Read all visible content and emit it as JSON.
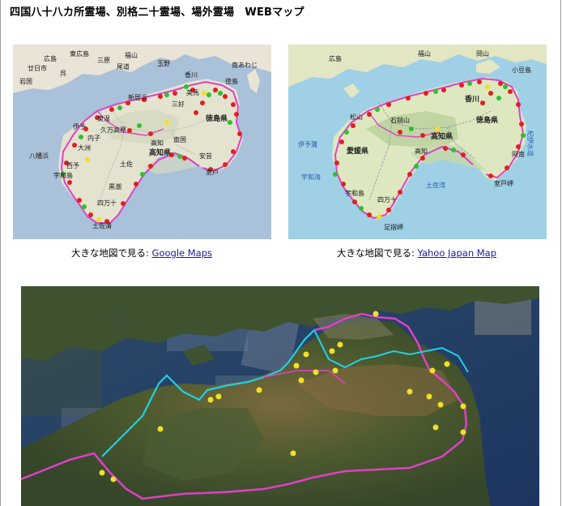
{
  "page": {
    "title": "四国八十八カ所霊場、別格二十霊場、場外霊場　WEBマップ"
  },
  "maps": {
    "google": {
      "caption_prefix": "大きな地図で見る:",
      "link_label": "Google Maps",
      "labels": {
        "hatsukaichi": "廿日市",
        "hiroshima": "広島",
        "higashihiroshima": "東広島",
        "mihara": "三原",
        "fukuyama": "福山",
        "kure": "呉",
        "onomichi": "尾道",
        "tamano": "玉野",
        "iwakuni": "岩国",
        "minami_awaji": "南あわじ",
        "kagawa": "香川",
        "tokushima_city": "徳島",
        "mima": "美馬",
        "miyoshi": "三好",
        "niihama": "新居浜",
        "iyo": "伊予",
        "toon": "東温",
        "kumakogen": "久万高原",
        "uchiko": "内子",
        "ozu": "大洲",
        "yawatahama": "八幡浜",
        "seiyo": "西予",
        "uwajima": "宇和島",
        "kochi_city": "高知",
        "nankoku": "南国",
        "aki": "安芸",
        "tosa": "土佐",
        "muroto": "室戸",
        "shimanto": "四万十",
        "kuroshio": "黒潮",
        "tosashimizu": "土佐清",
        "tokushima_pref": "徳島県",
        "kochi_pref": "高知県"
      }
    },
    "yahoo": {
      "caption_prefix": "大きな地図で見る:",
      "link_label": "Yahoo Japan Map",
      "labels": {
        "hiroshima": "広島",
        "okayama": "岡山",
        "fukuyama": "福山",
        "kagawa_pref": "香川",
        "tokushima_pref": "徳島県",
        "kochi_pref": "高知県",
        "ehime_pref": "愛媛県",
        "iyonada": "伊予灘",
        "uwakai": "宇和海",
        "tosawan": "土佐湾",
        "kii_channel": "紀伊水道",
        "muroto": "室戸岬",
        "ashizuri": "足摺岬",
        "kochi_city": "高知",
        "matsuyama": "松山",
        "ishizuchi": "石鎚山",
        "shodoshima": "小豆島",
        "anan": "阿南",
        "uwajima": "宇和島",
        "shimanto": "四万十"
      }
    },
    "satellite": {
      "name": "satellite-route-map"
    }
  },
  "colors": {
    "route_magenta": "#e040c8",
    "route_cyan": "#20d0e8",
    "marker_red": "#e02020",
    "marker_green": "#30c030",
    "marker_yellow": "#f0e020",
    "link": "#1a1aa6"
  }
}
